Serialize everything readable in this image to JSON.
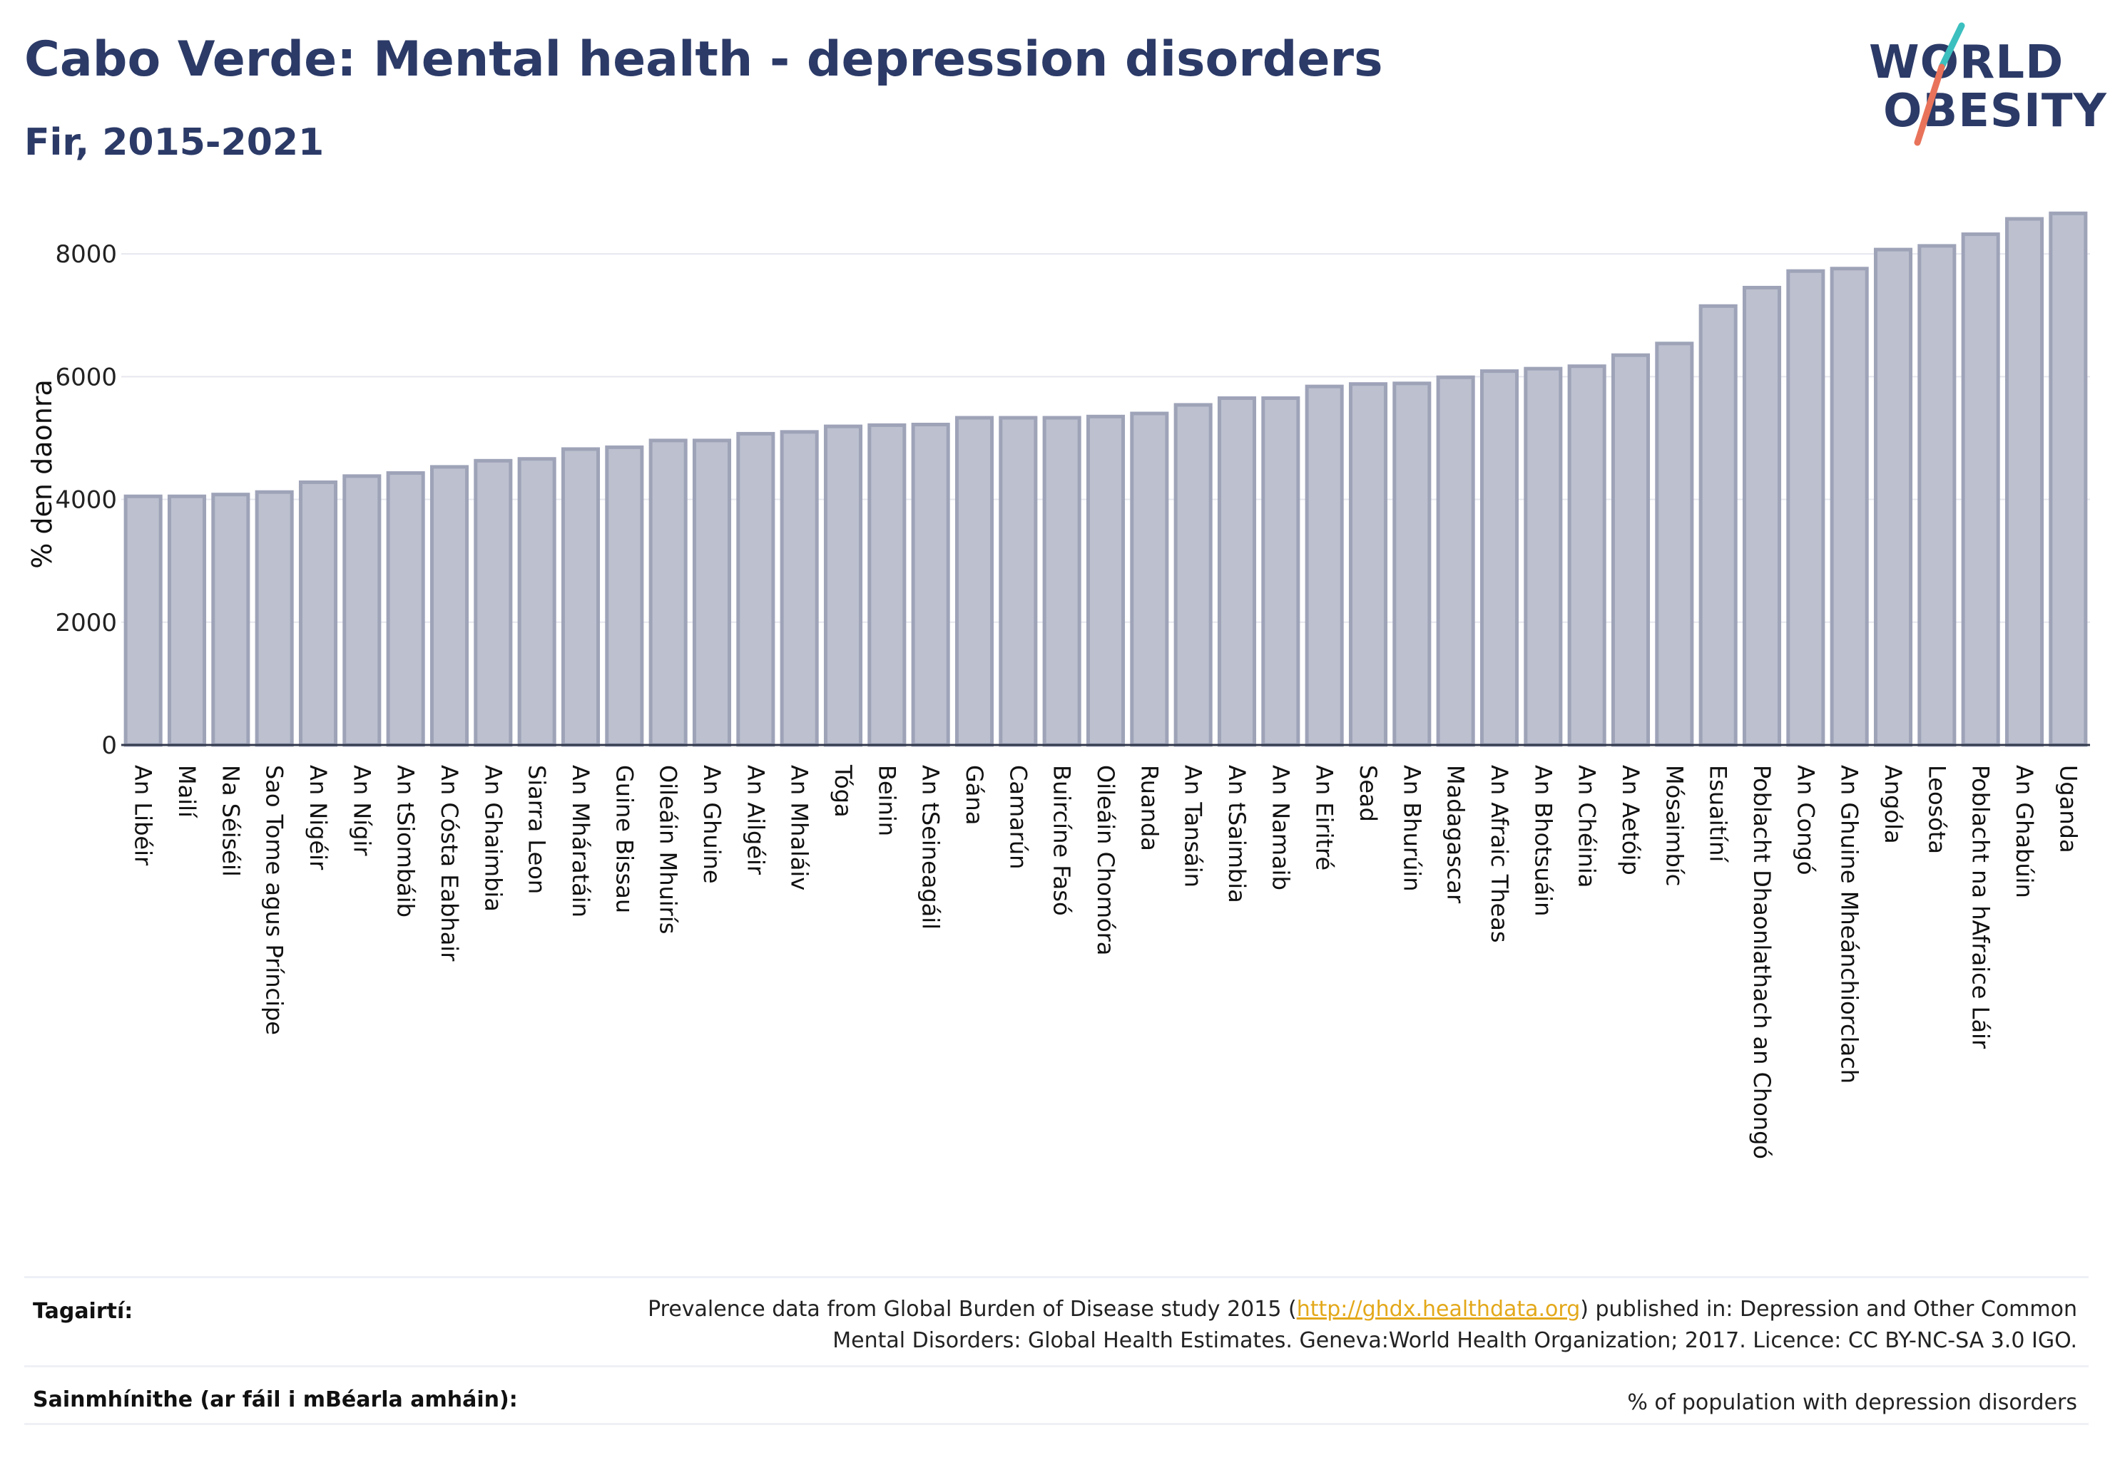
{
  "header": {
    "title": "Cabo Verde: Mental health - depression disorders",
    "subtitle": "Fir, 2015-2021"
  },
  "logo": {
    "line1": "WORLD",
    "line2": "OBESITY",
    "colors": {
      "text": "#2b3a67",
      "slash_top": "#3cbfbf",
      "slash_bottom": "#e8735a"
    }
  },
  "colors": {
    "bar_fill": "#bcc0cf",
    "bar_stroke": "#9ea3b8",
    "title": "#2b3a67",
    "link": "#e3a81a"
  },
  "chart_data": {
    "type": "bar",
    "title": "Cabo Verde: Mental health - depression disorders",
    "subtitle": "Fir, 2015-2021",
    "ylabel": "% den daonra",
    "xlabel": "",
    "ylim": [
      0,
      9000
    ],
    "yticks": [
      0,
      2000,
      4000,
      6000,
      8000
    ],
    "grid": true,
    "legend": "none",
    "categories": [
      "An Libéir",
      "Mailí",
      "Na Séiséil",
      "Sao Tome agus Príncipe",
      "An Nigéir",
      "An Nígir",
      "An tSiombáib",
      "An Cósta Eabhair",
      "An Ghaimbia",
      "Siarra Leon",
      "An Mháratáin",
      "Guine Bissau",
      "Oileáin Mhuirís",
      "An Ghuine",
      "An Ailgéir",
      "An Mhaláiv",
      "Tóga",
      "Beinin",
      "An tSeineagáil",
      "Gána",
      "Camarún",
      "Buircíne Fasó",
      "Oileáin Chomóra",
      "Ruanda",
      "An Tansáin",
      "An tSaimbia",
      "An Namaib",
      "An Eiritré",
      "Sead",
      "An Bhurúin",
      "Madagascar",
      "An Afraic Theas",
      "An Bhotsuáin",
      "An Chéinia",
      "An Aetóip",
      "Mósaimbíc",
      "Esuaitíní",
      "Poblacht Dhaonlathach an Chongó",
      "An Congó",
      "An Ghuine Mheánchiorclach",
      "Angóla",
      "Leosóta",
      "Poblacht na hAfraice Láir",
      "An Ghabúin",
      "Uganda"
    ],
    "values": [
      4050,
      4050,
      4080,
      4120,
      4280,
      4380,
      4430,
      4530,
      4630,
      4660,
      4820,
      4850,
      4960,
      4960,
      5070,
      5100,
      5190,
      5210,
      5220,
      5330,
      5330,
      5330,
      5350,
      5400,
      5540,
      5650,
      5650,
      5840,
      5880,
      5890,
      5990,
      6090,
      6130,
      6170,
      6350,
      6540,
      7150,
      7450,
      7720,
      7760,
      8070,
      8130,
      8320,
      8570,
      8660
    ]
  },
  "footer": {
    "references_label": "Tagairtí:",
    "references_line1_pre": "Prevalence data from Global Burden of Disease study 2015 (",
    "references_link": "http://ghdx.healthdata.org",
    "references_line1_post": ") published in: Depression and Other Common",
    "references_line2": "Mental Disorders: Global Health Estimates. Geneva:World Health Organization; 2017. Licence: CC BY-NC-SA 3.0 IGO.",
    "definitions_label": "Sainmhínithe (ar fáil i mBéarla amháin):",
    "definitions_text": "% of population with depression disorders"
  }
}
